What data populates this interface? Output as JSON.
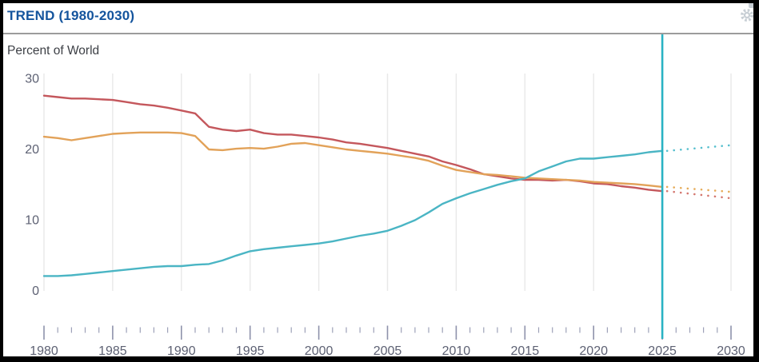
{
  "header": {
    "title": "TREND (1980-2030)",
    "title_color": "#14549d",
    "gear_color": "#c7ced4"
  },
  "chart_data": {
    "type": "line",
    "title": "TREND (1980-2030)",
    "ylabel": "Percent of World",
    "xlabel": "",
    "xlim": [
      1980,
      2030
    ],
    "ylim": [
      0,
      30
    ],
    "grid": "vertical-only",
    "legend": "none",
    "x_ticks_major": [
      1980,
      1985,
      1990,
      1995,
      2000,
      2005,
      2010,
      2015,
      2020,
      2025,
      2030
    ],
    "y_ticks": [
      0,
      10,
      20,
      30
    ],
    "marker_year": 2025,
    "years": [
      1980,
      1981,
      1982,
      1983,
      1984,
      1985,
      1986,
      1987,
      1988,
      1989,
      1990,
      1991,
      1992,
      1993,
      1994,
      1995,
      1996,
      1997,
      1998,
      1999,
      2000,
      2001,
      2002,
      2003,
      2004,
      2005,
      2006,
      2007,
      2008,
      2009,
      2010,
      2011,
      2012,
      2013,
      2014,
      2015,
      2016,
      2017,
      2018,
      2019,
      2020,
      2021,
      2022,
      2023,
      2024,
      2025
    ],
    "series": [
      {
        "name": "series-red",
        "color": "#c4575c",
        "values": [
          27.6,
          27.4,
          27.2,
          27.2,
          27.1,
          27.0,
          26.7,
          26.4,
          26.2,
          25.9,
          25.5,
          25.1,
          23.2,
          22.8,
          22.6,
          22.8,
          22.3,
          22.1,
          22.1,
          21.9,
          21.7,
          21.4,
          21.0,
          20.8,
          20.5,
          20.2,
          19.8,
          19.4,
          19.0,
          18.3,
          17.8,
          17.2,
          16.5,
          16.2,
          15.9,
          15.7,
          15.7,
          15.6,
          15.7,
          15.5,
          15.2,
          15.1,
          14.8,
          14.6,
          14.3,
          14.1
        ]
      },
      {
        "name": "series-orange",
        "color": "#e2a259",
        "values": [
          21.8,
          21.6,
          21.3,
          21.6,
          21.9,
          22.2,
          22.3,
          22.4,
          22.4,
          22.4,
          22.3,
          21.9,
          20.0,
          19.9,
          20.1,
          20.2,
          20.1,
          20.4,
          20.8,
          20.9,
          20.6,
          20.3,
          20.0,
          19.8,
          19.6,
          19.4,
          19.1,
          18.8,
          18.4,
          17.7,
          17.1,
          16.8,
          16.5,
          16.4,
          16.2,
          16.0,
          15.9,
          15.8,
          15.7,
          15.6,
          15.4,
          15.3,
          15.2,
          15.1,
          14.9,
          14.7
        ]
      },
      {
        "name": "series-teal",
        "color": "#4ab5c4",
        "values": [
          2.1,
          2.1,
          2.2,
          2.4,
          2.6,
          2.8,
          3.0,
          3.2,
          3.4,
          3.5,
          3.5,
          3.7,
          3.8,
          4.3,
          5.0,
          5.6,
          5.9,
          6.1,
          6.3,
          6.5,
          6.7,
          7.0,
          7.4,
          7.8,
          8.1,
          8.5,
          9.2,
          10.0,
          11.1,
          12.3,
          13.1,
          13.8,
          14.4,
          15.0,
          15.5,
          15.9,
          16.9,
          17.6,
          18.3,
          18.7,
          18.7,
          18.9,
          19.1,
          19.3,
          19.6,
          19.8
        ]
      }
    ],
    "projections": [
      {
        "name": "series-red-projection",
        "color": "#d4776f",
        "x": [
          2025,
          2030
        ],
        "values": [
          14.1,
          13.1
        ]
      },
      {
        "name": "series-orange-projection",
        "color": "#e6ab58",
        "x": [
          2025,
          2030
        ],
        "values": [
          14.7,
          14.0
        ]
      },
      {
        "name": "series-teal-projection",
        "color": "#55bfce",
        "x": [
          2025,
          2030
        ],
        "values": [
          19.8,
          20.6
        ]
      }
    ],
    "style": {
      "grid_color": "#e8e8e8",
      "label_color": "#5d6173",
      "tick_minor_color": "#9da1b8",
      "tick_major_color": "#8e92ab",
      "marker_color": "#29b2c3"
    }
  }
}
